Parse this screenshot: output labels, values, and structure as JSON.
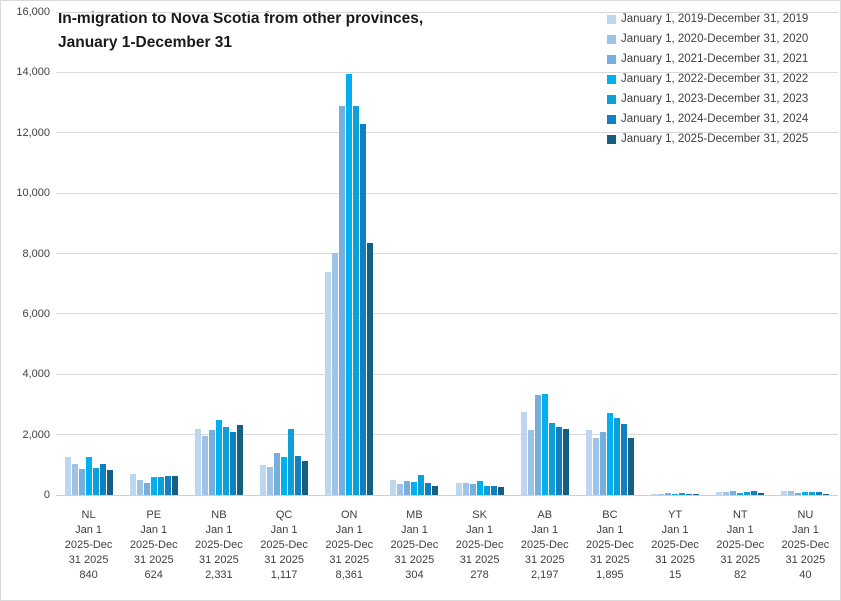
{
  "header": {
    "title_line1": "In-migration to Nova Scotia from other provinces,",
    "title_line2": "January 1-December 31"
  },
  "chart_data": {
    "type": "bar",
    "title": "In-migration to Nova Scotia from other provinces, January 1-December 31",
    "categories": [
      "NL",
      "PE",
      "NB",
      "QC",
      "ON",
      "MB",
      "SK",
      "AB",
      "BC",
      "YT",
      "NT",
      "NU"
    ],
    "x_tick_line2": "Jan 1",
    "x_tick_line3": "2025-Dec",
    "x_tick_line4": "31 2025",
    "category_value_labels": [
      "840",
      "624",
      "2,331",
      "1,117",
      "8,361",
      "304",
      "278",
      "2,197",
      "1,895",
      "15",
      "82",
      "40"
    ],
    "series": [
      {
        "name": "January 1, 2019-December 31, 2019",
        "color": "#BDD7EE",
        "values": [
          1250,
          690,
          2200,
          1000,
          7400,
          500,
          390,
          2750,
          2150,
          25,
          110,
          140
        ]
      },
      {
        "name": "January 1, 2020-December 31, 2020",
        "color": "#9DC3E6",
        "values": [
          1030,
          510,
          1950,
          930,
          8000,
          350,
          390,
          2150,
          1900,
          30,
          110,
          140
        ]
      },
      {
        "name": "January 1, 2021-December 31, 2021",
        "color": "#74AFDD",
        "values": [
          860,
          400,
          2150,
          1390,
          12880,
          450,
          370,
          3300,
          2100,
          60,
          140,
          60
        ]
      },
      {
        "name": "January 1, 2022-December 31, 2022",
        "color": "#00B0F0",
        "values": [
          1260,
          600,
          2500,
          1250,
          13950,
          430,
          450,
          3350,
          2700,
          35,
          80,
          110
        ]
      },
      {
        "name": "January 1, 2023-December 31, 2023",
        "color": "#0E9FD8",
        "values": [
          890,
          590,
          2250,
          2200,
          12900,
          650,
          300,
          2400,
          2550,
          65,
          85,
          110
        ]
      },
      {
        "name": "January 1, 2024-December 31, 2024",
        "color": "#1180C0",
        "values": [
          1030,
          620,
          2100,
          1300,
          12280,
          390,
          300,
          2250,
          2350,
          40,
          130,
          110
        ]
      },
      {
        "name": "January 1, 2025-December 31, 2025",
        "color": "#156082",
        "values": [
          840,
          624,
          2331,
          1117,
          8361,
          304,
          278,
          2197,
          1895,
          15,
          82,
          40
        ]
      }
    ],
    "ylim": [
      0,
      16000
    ],
    "ytick_step": 2000,
    "yticks": [
      "0",
      "2,000",
      "4,000",
      "6,000",
      "8,000",
      "10,000",
      "12,000",
      "14,000",
      "16,000"
    ],
    "grid": true,
    "legend_position": "top-right"
  }
}
